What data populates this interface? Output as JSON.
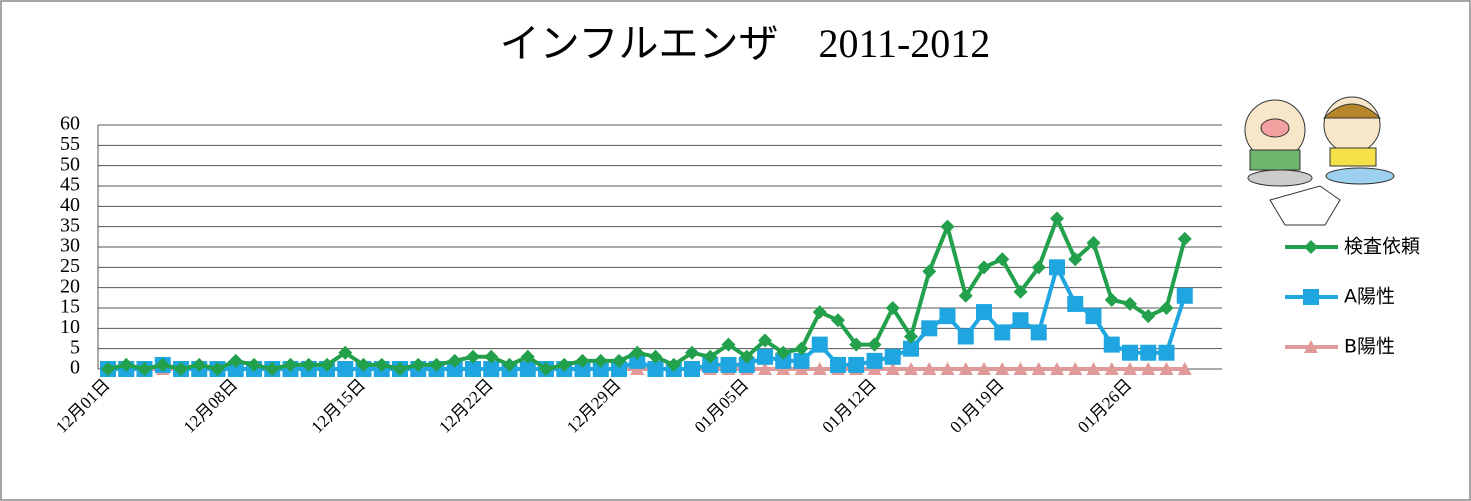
{
  "chart_data": {
    "type": "line",
    "title": "インフルエンザ　2011-2012",
    "categories": [
      "12月01日",
      null,
      null,
      null,
      null,
      null,
      null,
      "12月08日",
      null,
      null,
      null,
      null,
      null,
      null,
      "12月15日",
      null,
      null,
      null,
      null,
      null,
      null,
      "12月22日",
      null,
      null,
      null,
      null,
      null,
      null,
      "12月29日",
      null,
      null,
      null,
      null,
      null,
      null,
      "01月05日",
      null,
      null,
      null,
      null,
      null,
      null,
      "01月12日",
      null,
      null,
      null,
      null,
      null,
      null,
      "01月19日",
      null,
      null,
      null,
      null,
      null,
      null,
      "01月26日",
      null,
      null,
      null
    ],
    "series": [
      {
        "name": "検査依頼",
        "color": "#22a04b",
        "marker": "diamond",
        "values": [
          0,
          1,
          0,
          1,
          0,
          1,
          0,
          2,
          1,
          0,
          1,
          1,
          1,
          4,
          1,
          1,
          0,
          1,
          1,
          2,
          3,
          3,
          1,
          3,
          0,
          1,
          2,
          2,
          2,
          4,
          3,
          1,
          4,
          3,
          6,
          3,
          7,
          4,
          5,
          14,
          12,
          6,
          6,
          15,
          8,
          24,
          35,
          18,
          25,
          27,
          19,
          25,
          37,
          27,
          31,
          17,
          16,
          13,
          15,
          32
        ]
      },
      {
        "name": "A陽性",
        "color": "#1fa6e0",
        "marker": "square",
        "values": [
          0,
          0,
          0,
          1,
          0,
          0,
          0,
          0,
          0,
          0,
          0,
          0,
          0,
          0,
          0,
          0,
          0,
          0,
          0,
          0,
          0,
          0,
          0,
          0,
          0,
          0,
          0,
          0,
          0,
          2,
          0,
          0,
          0,
          1,
          1,
          1,
          3,
          2,
          2,
          6,
          1,
          1,
          2,
          3,
          5,
          10,
          13,
          8,
          14,
          9,
          12,
          9,
          25,
          16,
          13,
          6,
          4,
          4,
          4,
          18
        ]
      },
      {
        "name": "B陽性",
        "color": "#e09a9a",
        "marker": "triangle",
        "values": [
          0,
          0,
          0,
          0,
          0,
          0,
          0,
          0,
          0,
          0,
          0,
          0,
          0,
          0,
          0,
          0,
          0,
          0,
          0,
          0,
          0,
          0,
          0,
          0,
          0,
          0,
          0,
          0,
          0,
          0,
          0,
          0,
          0,
          0,
          0,
          0,
          0,
          0,
          0,
          0,
          0,
          0,
          0,
          0,
          0,
          0,
          0,
          0,
          0,
          0,
          0,
          0,
          0,
          0,
          0,
          0,
          0,
          0,
          0,
          0
        ]
      }
    ],
    "ylim": [
      0,
      60
    ],
    "yticks": [
      0,
      5,
      10,
      15,
      20,
      25,
      30,
      35,
      40,
      45,
      50,
      55,
      60
    ],
    "grid": true,
    "legend": "right"
  }
}
